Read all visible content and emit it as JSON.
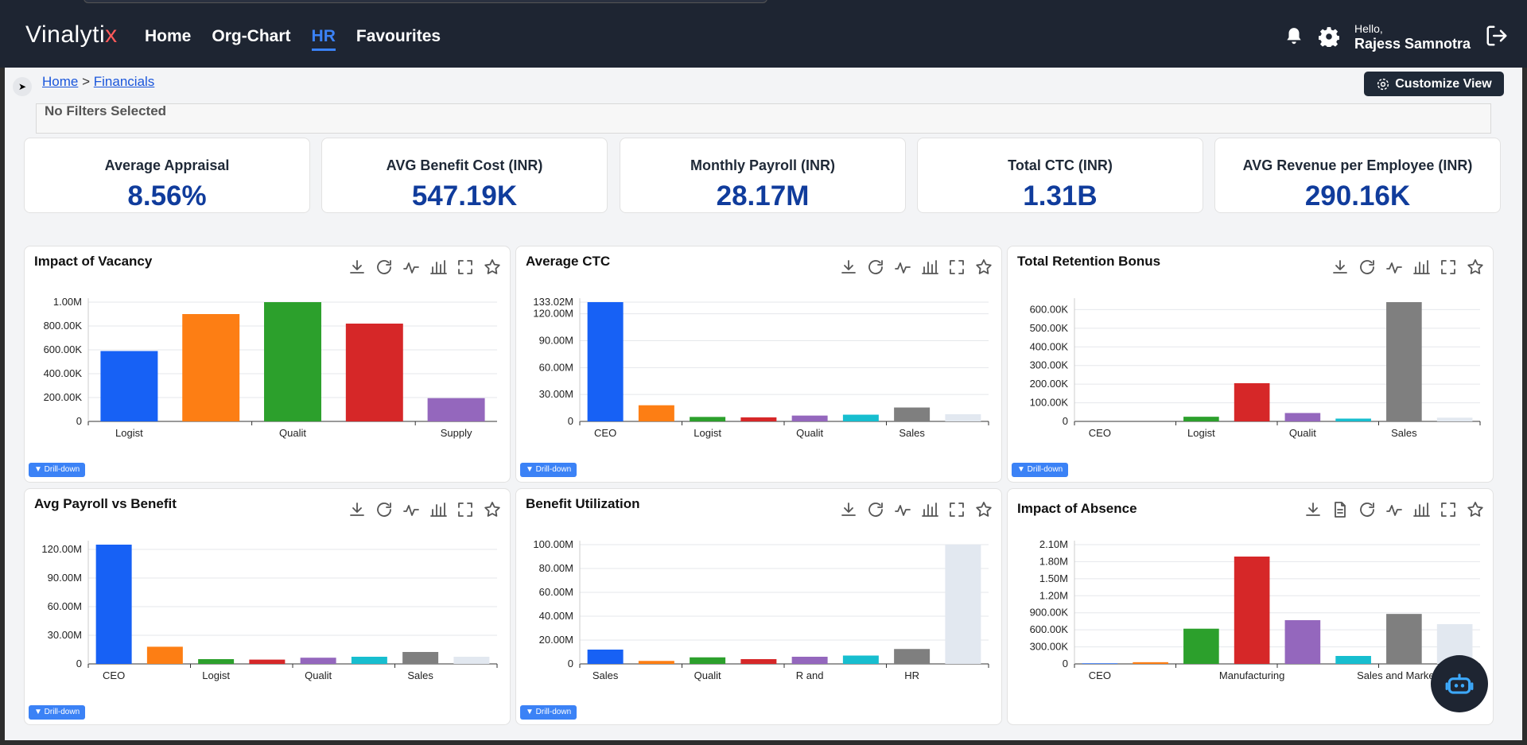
{
  "app": {
    "logo_main": "Vinalyti",
    "logo_x": "x"
  },
  "nav": [
    {
      "label": "Home",
      "active": false
    },
    {
      "label": "Org-Chart",
      "active": false
    },
    {
      "label": "HR",
      "active": true
    },
    {
      "label": "Favourites",
      "active": false
    }
  ],
  "user": {
    "greeting": "Hello,",
    "name": "Rajess Samnotra"
  },
  "breadcrumb": {
    "home": "Home",
    "separator": ">",
    "current": "Financials"
  },
  "customize_label": "Customize View",
  "filters_text": "No Filters Selected",
  "kpis": [
    {
      "label": "Average Appraisal",
      "value": "8.56%"
    },
    {
      "label": "AVG Benefit Cost (INR)",
      "value": "547.19K"
    },
    {
      "label": "Monthly Payroll (INR)",
      "value": "28.17M"
    },
    {
      "label": "Total CTC (INR)",
      "value": "1.31B"
    },
    {
      "label": "AVG Revenue per Employee (INR)",
      "value": "290.16K"
    }
  ],
  "drill_label": "▼ Drill-down",
  "colors": [
    "#1761f5",
    "#fd7e14",
    "#2ca02c",
    "#d62728",
    "#9467bd",
    "#17becf",
    "#7f7f7f",
    "#e2e8f0"
  ],
  "chart_data": [
    {
      "id": "impact-of-vacancy",
      "type": "bar",
      "title": "Impact of Vacancy",
      "values": [
        590000,
        900000,
        1000000,
        820000,
        195000
      ],
      "ylim": [
        0,
        1000000
      ],
      "yticks": [
        {
          "v": 0,
          "t": "0"
        },
        {
          "v": 200000,
          "t": "200.00K"
        },
        {
          "v": 400000,
          "t": "400.00K"
        },
        {
          "v": 600000,
          "t": "600.00K"
        },
        {
          "v": 800000,
          "t": "800.00K"
        },
        {
          "v": 1000000,
          "t": "1.00M"
        }
      ],
      "xlabels": [
        {
          "i": 0,
          "t": "Logist"
        },
        {
          "i": 2,
          "t": "Qualit"
        },
        {
          "i": 4,
          "t": "Supply"
        }
      ],
      "drill": true
    },
    {
      "id": "average-ctc",
      "type": "bar",
      "title": "Average CTC",
      "values": [
        133020000,
        18000000,
        5000000,
        4500000,
        6500000,
        7500000,
        15500000,
        8000000
      ],
      "ylim": [
        0,
        133020000
      ],
      "yticks": [
        {
          "v": 0,
          "t": "0"
        },
        {
          "v": 30000000,
          "t": "30.00M"
        },
        {
          "v": 60000000,
          "t": "60.00M"
        },
        {
          "v": 90000000,
          "t": "90.00M"
        },
        {
          "v": 120000000,
          "t": "120.00M"
        },
        {
          "v": 133020000,
          "t": "133.02M"
        }
      ],
      "xlabels": [
        {
          "i": 0,
          "t": "CEO"
        },
        {
          "i": 2,
          "t": "Logist"
        },
        {
          "i": 4,
          "t": "Qualit"
        },
        {
          "i": 6,
          "t": "Sales"
        }
      ],
      "drill": true
    },
    {
      "id": "total-retention-bonus",
      "type": "bar",
      "title": "Total Retention Bonus",
      "values": [
        0,
        0,
        25000,
        205000,
        45000,
        15000,
        640000,
        20000
      ],
      "ylim": [
        0,
        640000
      ],
      "yticks": [
        {
          "v": 0,
          "t": "0"
        },
        {
          "v": 100000,
          "t": "100.00K"
        },
        {
          "v": 200000,
          "t": "200.00K"
        },
        {
          "v": 300000,
          "t": "300.00K"
        },
        {
          "v": 400000,
          "t": "400.00K"
        },
        {
          "v": 500000,
          "t": "500.00K"
        },
        {
          "v": 600000,
          "t": "600.00K"
        }
      ],
      "xlabels": [
        {
          "i": 0,
          "t": "CEO"
        },
        {
          "i": 2,
          "t": "Logist"
        },
        {
          "i": 4,
          "t": "Qualit"
        },
        {
          "i": 6,
          "t": "Sales"
        }
      ],
      "drill": true
    },
    {
      "id": "avg-payroll-vs-benefit",
      "type": "bar",
      "title": "Avg Payroll vs Benefit",
      "values": [
        125000000,
        18000000,
        5000000,
        4500000,
        6500000,
        7500000,
        12500000,
        7500000
      ],
      "ylim": [
        0,
        125000000
      ],
      "yticks": [
        {
          "v": 0,
          "t": "0"
        },
        {
          "v": 30000000,
          "t": "30.00M"
        },
        {
          "v": 60000000,
          "t": "60.00M"
        },
        {
          "v": 90000000,
          "t": "90.00M"
        },
        {
          "v": 120000000,
          "t": "120.00M"
        }
      ],
      "xlabels": [
        {
          "i": 0,
          "t": "CEO"
        },
        {
          "i": 2,
          "t": "Logist"
        },
        {
          "i": 4,
          "t": "Qualit"
        },
        {
          "i": 6,
          "t": "Sales"
        }
      ],
      "drill": true
    },
    {
      "id": "benefit-utilization",
      "type": "bar",
      "title": "Benefit Utilization",
      "values": [
        12000000,
        2500000,
        5500000,
        4000000,
        6000000,
        7000000,
        12500000,
        100000000
      ],
      "ylim": [
        0,
        100000000
      ],
      "yticks": [
        {
          "v": 0,
          "t": "0"
        },
        {
          "v": 20000000,
          "t": "20.00M"
        },
        {
          "v": 40000000,
          "t": "40.00M"
        },
        {
          "v": 60000000,
          "t": "60.00M"
        },
        {
          "v": 80000000,
          "t": "80.00M"
        },
        {
          "v": 100000000,
          "t": "100.00M"
        }
      ],
      "xlabels": [
        {
          "i": 0,
          "t": "Sales"
        },
        {
          "i": 2,
          "t": "Qualit"
        },
        {
          "i": 4,
          "t": "R and"
        },
        {
          "i": 6,
          "t": "HR"
        }
      ],
      "drill": true
    },
    {
      "id": "impact-of-absence",
      "type": "bar",
      "title": "Impact of Absence",
      "values": [
        10000,
        30000,
        620000,
        1890000,
        770000,
        140000,
        880000,
        700000
      ],
      "ylim": [
        0,
        2100000
      ],
      "yticks": [
        {
          "v": 0,
          "t": "0"
        },
        {
          "v": 300000,
          "t": "300.00K"
        },
        {
          "v": 600000,
          "t": "600.00K"
        },
        {
          "v": 900000,
          "t": "900.00K"
        },
        {
          "v": 1200000,
          "t": "1.20M"
        },
        {
          "v": 1500000,
          "t": "1.50M"
        },
        {
          "v": 1800000,
          "t": "1.80M"
        },
        {
          "v": 2100000,
          "t": "2.10M"
        }
      ],
      "xlabels": [
        {
          "i": 0,
          "t": "CEO"
        },
        {
          "i": 3,
          "t": "Manufacturing"
        },
        {
          "i": 6,
          "t": "Sales and Marketing"
        }
      ],
      "drill": false,
      "extra_tool": true
    }
  ]
}
